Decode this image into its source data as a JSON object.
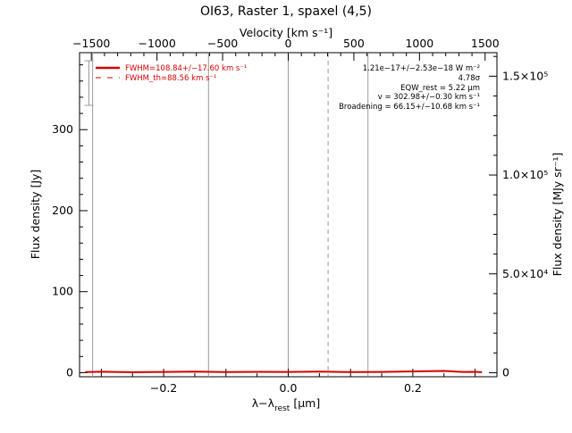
{
  "chart_data": {
    "type": "line",
    "title": "OI63, Raster 1, spaxel (4,5)",
    "xlabel_prefix": "λ−λ",
    "xlabel_sub": "rest",
    "xlabel_suffix": " [μm]",
    "ylabel": "Flux density [Jy]",
    "top_axis_label": "Velocity [km s⁻¹]",
    "right_axis_label": "Flux density [MJy sr⁻¹]",
    "xlim": [
      -0.335,
      0.335
    ],
    "ylim": [
      -5,
      395
    ],
    "x_ticks": [
      {
        "v": -0.2,
        "label": "−0.2"
      },
      {
        "v": 0.0,
        "label": "0.0"
      },
      {
        "v": 0.2,
        "label": "0.2"
      }
    ],
    "y_ticks": [
      {
        "v": 0,
        "label": "0"
      },
      {
        "v": 100,
        "label": "100"
      },
      {
        "v": 200,
        "label": "200"
      },
      {
        "v": 300,
        "label": "300"
      }
    ],
    "top_ticks": [
      {
        "v": -1500,
        "label": "−1500"
      },
      {
        "v": -1000,
        "label": "−1000"
      },
      {
        "v": -500,
        "label": "−500"
      },
      {
        "v": 0,
        "label": "0"
      },
      {
        "v": 500,
        "label": "500"
      },
      {
        "v": 1000,
        "label": "1000"
      },
      {
        "v": 1500,
        "label": "1500"
      }
    ],
    "top_range": [
      -1590,
      1590
    ],
    "right_ticks": [
      {
        "v": 0,
        "label": "0"
      },
      {
        "v": 50000,
        "label": "5.0×10⁴"
      },
      {
        "v": 100000,
        "label": "1.0×10⁵"
      },
      {
        "v": 150000,
        "label": "1.5×10⁵"
      }
    ],
    "right_range": [
      -2050,
      161900
    ],
    "vlines_solid": [
      -0.314,
      -0.128,
      0.0,
      0.128
    ],
    "vlines_dashed": [
      0.064
    ],
    "series": [
      {
        "name": "FWHM=108.84+/−17.60 km s⁻¹",
        "color": "#d40000",
        "x": [
          -0.325,
          -0.3,
          -0.25,
          -0.2,
          -0.15,
          -0.1,
          -0.05,
          0.0,
          0.05,
          0.1,
          0.15,
          0.2,
          0.25,
          0.28,
          0.3,
          0.31
        ],
        "y": [
          0.8,
          1.2,
          0.6,
          0.9,
          1.4,
          0.7,
          1.1,
          0.9,
          1.3,
          0.8,
          1.0,
          1.6,
          2.2,
          0.9,
          1.1,
          0.6
        ]
      }
    ],
    "legend": [
      {
        "label": "FWHM=108.84+/−17.60 km s⁻¹",
        "style": "solid",
        "color": "#d40000"
      },
      {
        "label": "FWHM_th=88.56 km s⁻¹",
        "style": "dashed",
        "color": "#d40000"
      }
    ],
    "annotations": [
      "1.21e−17+/−2.53e−18 W m⁻²",
      "4.78σ",
      "EQW_rest = 5.22 μm",
      "v = 302.98+/−0.30 km s⁻¹",
      "Broadening = 66.15+/−10.68 km s⁻¹"
    ],
    "error_bar": {
      "x": -0.32,
      "y_low": 330,
      "y_high": 385
    }
  }
}
